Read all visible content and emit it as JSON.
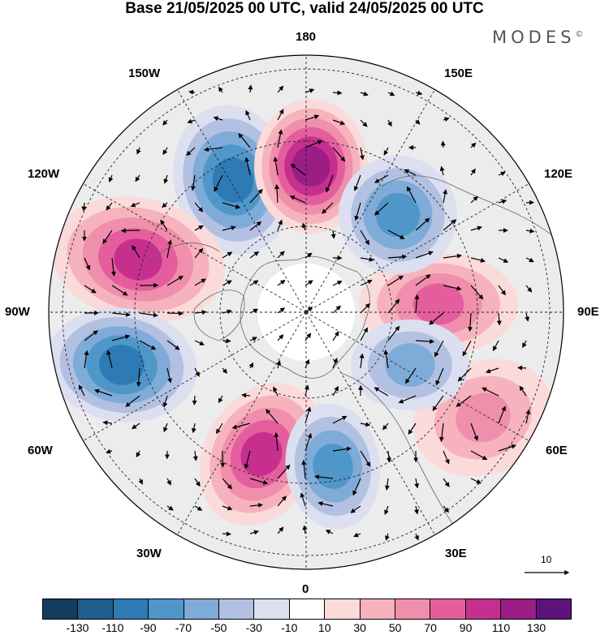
{
  "title": "Base 21/05/2025 00 UTC, valid 24/05/2025 00 UTC",
  "brand": "MODES",
  "brand_mark": "©",
  "longitude_labels": {
    "top": "180",
    "bottom": "0",
    "left": "90W",
    "right": "90E",
    "w150": "150W",
    "w120": "120W",
    "w60": "60W",
    "w30": "30W",
    "e150": "150E",
    "e120": "120E",
    "e60": "60E",
    "e30": "30E"
  },
  "scale_vector": {
    "label": "10"
  },
  "legend": {
    "colors": [
      "#153b5e",
      "#1e5f8c",
      "#2e7ab5",
      "#4f97c9",
      "#7fabd8",
      "#b2c1e2",
      "#dcdff0",
      "#ffffff",
      "#fbdada",
      "#f6b3bd",
      "#f08fab",
      "#e45e9e",
      "#c72f8f",
      "#9c1d86",
      "#5e137c"
    ],
    "ticks": [
      "-130",
      "-110",
      "-90",
      "-70",
      "-50",
      "-30",
      "-10",
      "10",
      "30",
      "50",
      "70",
      "90",
      "110",
      "130"
    ]
  },
  "anomaly_centers": [
    {
      "sign": "negative",
      "lon": "155W",
      "intensity": -90
    },
    {
      "sign": "positive",
      "lon": "175E",
      "intensity": 110
    },
    {
      "sign": "positive",
      "lon": "120W",
      "intensity": 90
    },
    {
      "sign": "negative",
      "lon": "75W",
      "intensity": -90
    },
    {
      "sign": "positive",
      "lon": "35W",
      "intensity": 90
    },
    {
      "sign": "negative",
      "lon": "10E",
      "intensity": -70
    },
    {
      "sign": "positive",
      "lon": "60E",
      "intensity": 50
    },
    {
      "sign": "positive",
      "lon": "95E",
      "intensity": 70
    },
    {
      "sign": "negative",
      "lon": "130E",
      "intensity": -70
    },
    {
      "sign": "negative",
      "lon": "70E",
      "intensity": -50
    }
  ]
}
